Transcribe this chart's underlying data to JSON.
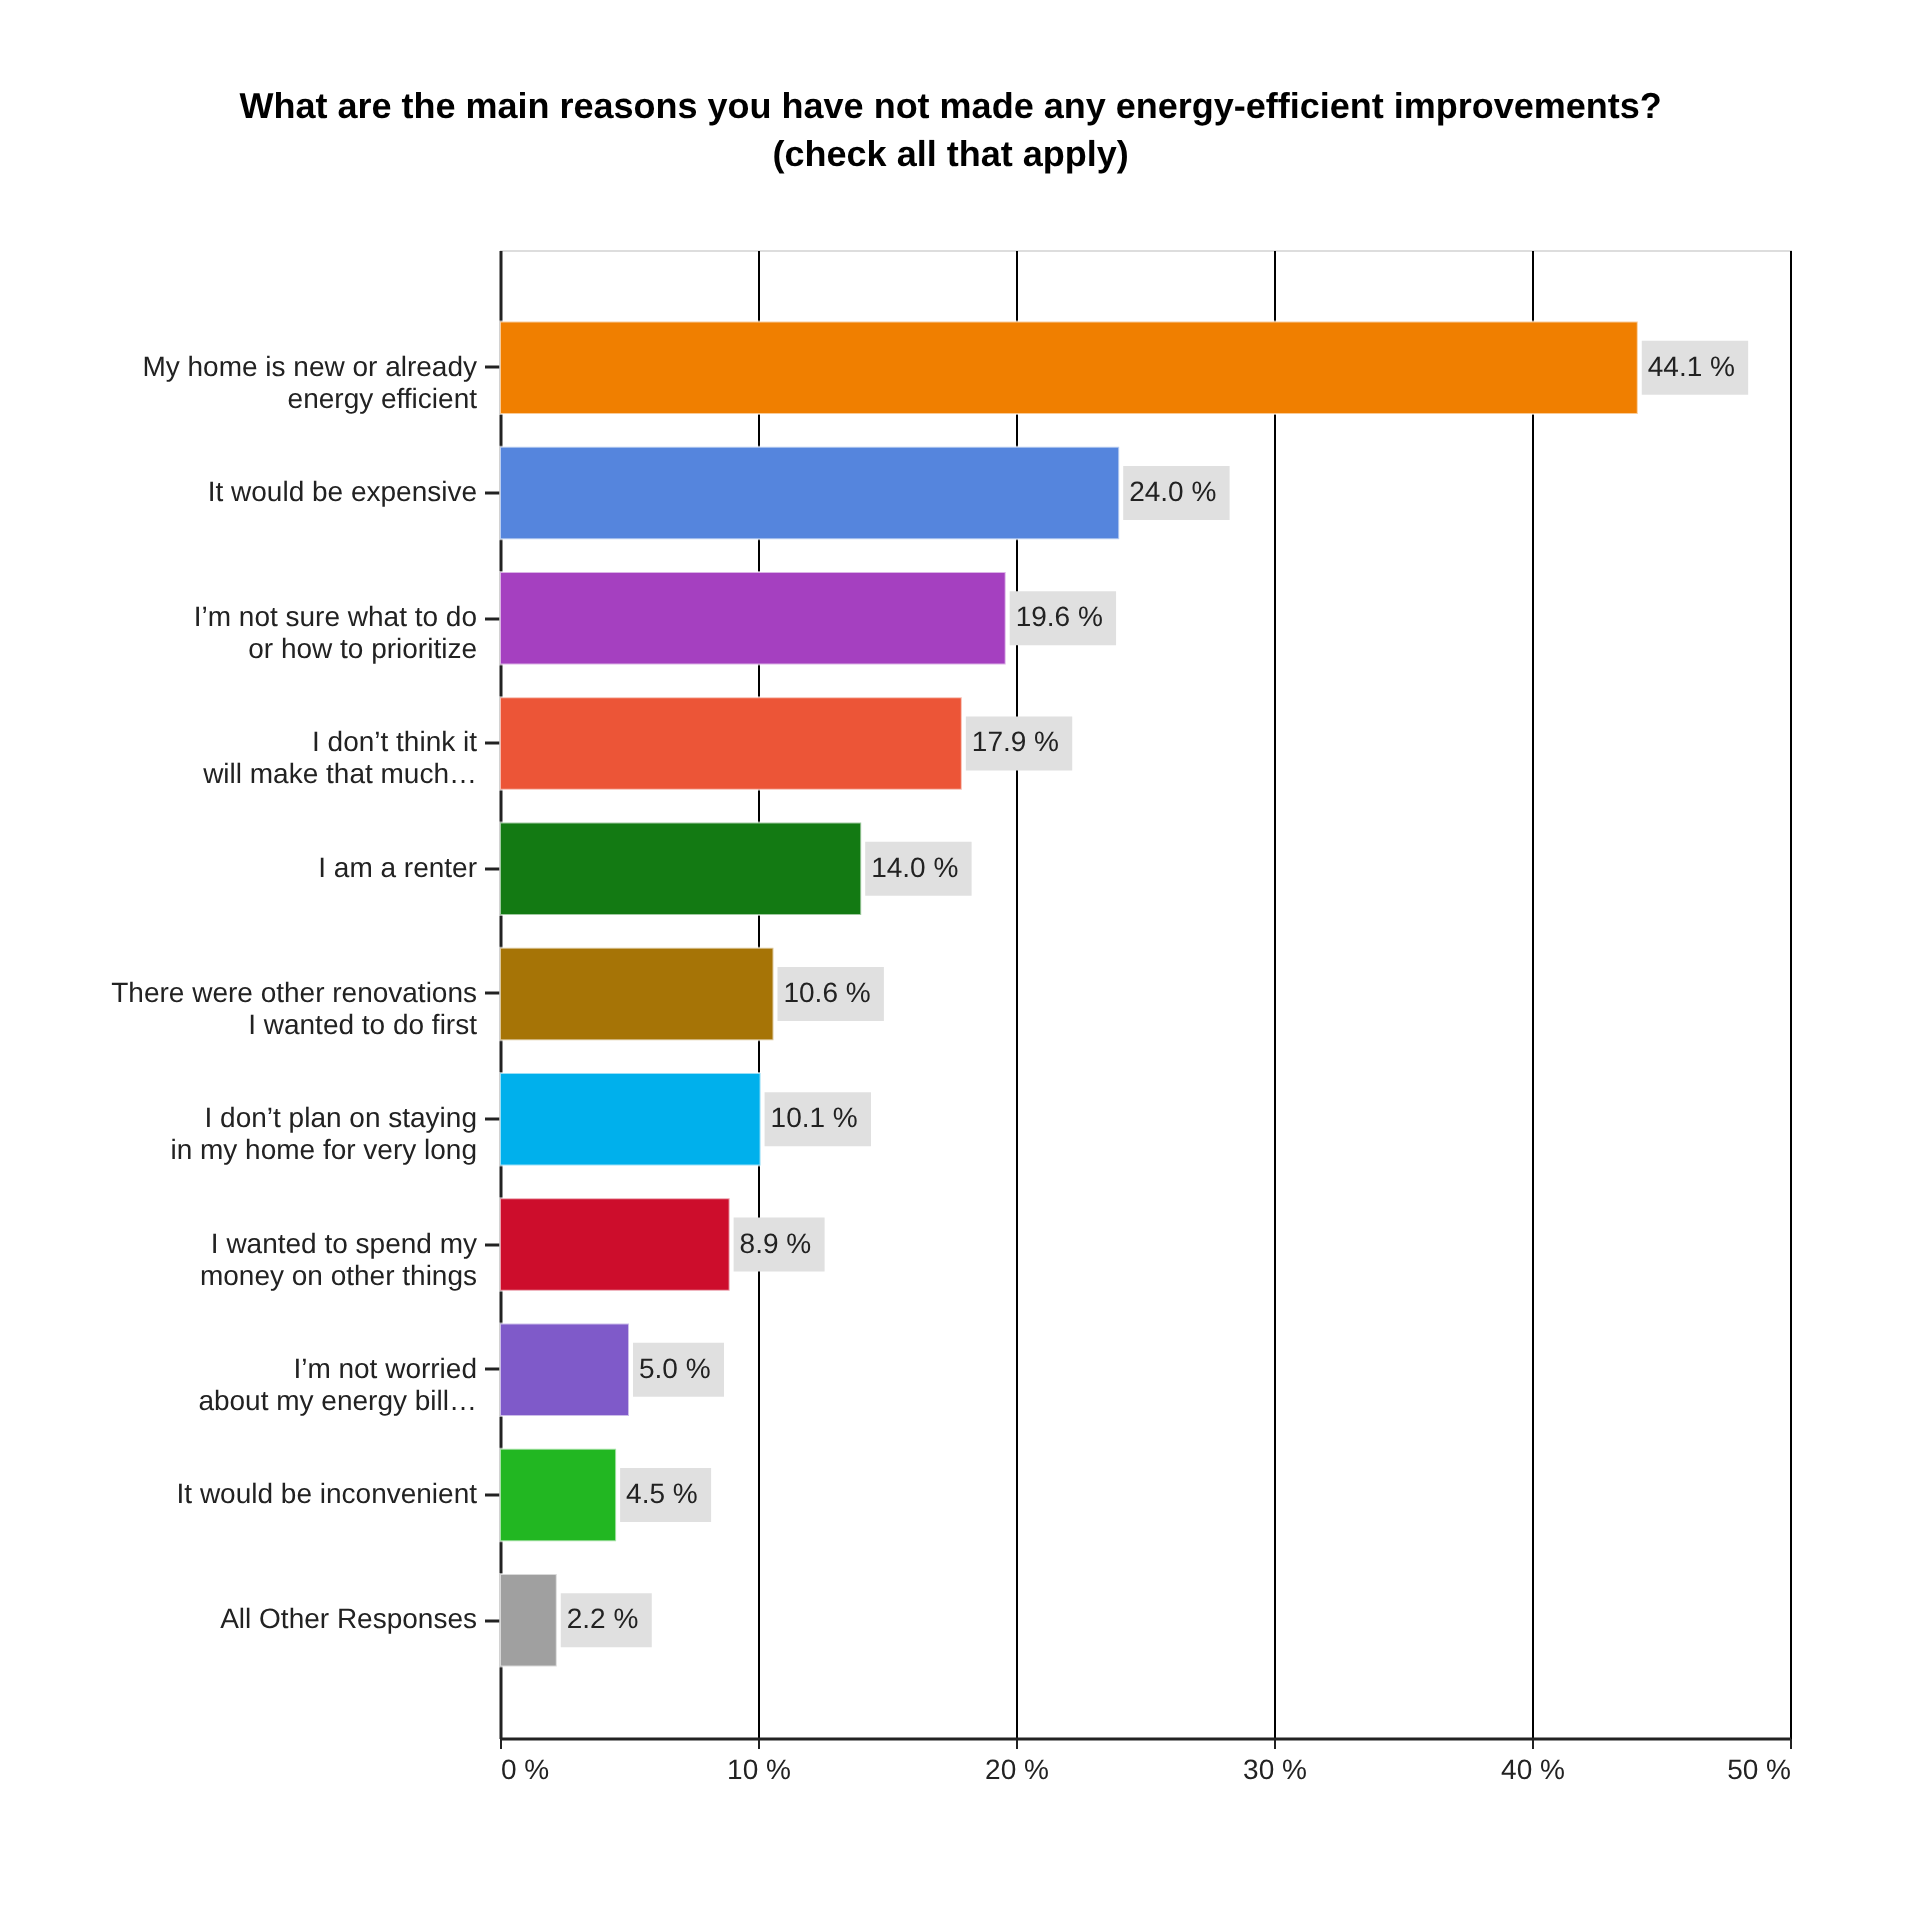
{
  "chart_data": {
    "type": "bar",
    "orientation": "horizontal",
    "title": "What are the main reasons you have not made any energy-efficient improvements?\n(check all that apply)",
    "categories": [
      "My home is new or already\nenergy efficient",
      "It would be expensive",
      "I’m not sure what to do\nor how to prioritize",
      "I don’t think it\nwill make that much…",
      "I am a renter",
      "There were other renovations\nI wanted to do first",
      "I don’t plan on staying\nin my home for very long",
      "I wanted to spend my\nmoney on other things",
      "I’m not worried\nabout my energy bill…",
      "It would be inconvenient",
      "All Other Responses"
    ],
    "values": [
      44.1,
      24.0,
      19.6,
      17.9,
      14.0,
      10.6,
      10.1,
      8.9,
      5.0,
      4.5,
      2.2
    ],
    "colors": [
      "#f07f00",
      "#5585dd",
      "#a540c0",
      "#ec5537",
      "#137a13",
      "#a67406",
      "#00b0ec",
      "#cd0d2c",
      "#7f5ac9",
      "#22b722",
      "#a0a0a0"
    ],
    "value_labels": [
      "44.1 %",
      "24.0 %",
      "19.6 %",
      "17.9 %",
      "14.0 %",
      "10.6 %",
      "10.1 %",
      "8.9 %",
      "5.0 %",
      "4.5 %",
      "2.2 %"
    ],
    "xlim": [
      0,
      50
    ],
    "xticks": [
      {
        "value": 0,
        "label": "0 %"
      },
      {
        "value": 10,
        "label": "10 %"
      },
      {
        "value": 20,
        "label": "20 %"
      },
      {
        "value": 30,
        "label": "30 %"
      },
      {
        "value": 40,
        "label": "40 %"
      },
      {
        "value": 50,
        "label": "50 %"
      }
    ],
    "grid": "x"
  }
}
